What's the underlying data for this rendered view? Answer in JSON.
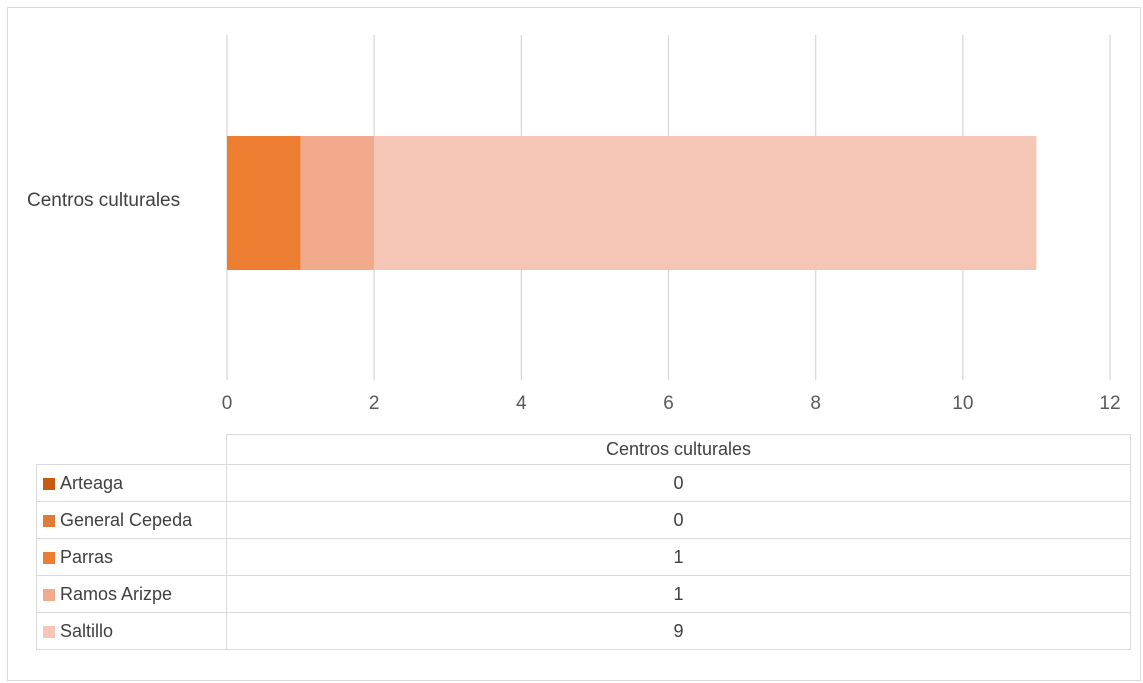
{
  "chart_data": {
    "type": "bar",
    "orientation": "horizontal",
    "stacked": true,
    "categories": [
      "Centros culturales"
    ],
    "series": [
      {
        "name": "Arteaga",
        "values": [
          0
        ],
        "color": "#C55A11"
      },
      {
        "name": "General Cepeda",
        "values": [
          0
        ],
        "color": "#E07B39"
      },
      {
        "name": "Parras",
        "values": [
          1
        ],
        "color": "#ED7D31"
      },
      {
        "name": "Ramos Arizpe",
        "values": [
          1
        ],
        "color": "#F2AA8D"
      },
      {
        "name": "Saltillo",
        "values": [
          9
        ],
        "color": "#F5C6B6"
      }
    ],
    "xlim": [
      0,
      12
    ],
    "xticks": [
      "0",
      "2",
      "4",
      "6",
      "8",
      "10",
      "12"
    ],
    "grid": true,
    "legend": "data table below chart",
    "table_header": "Centros culturales"
  }
}
